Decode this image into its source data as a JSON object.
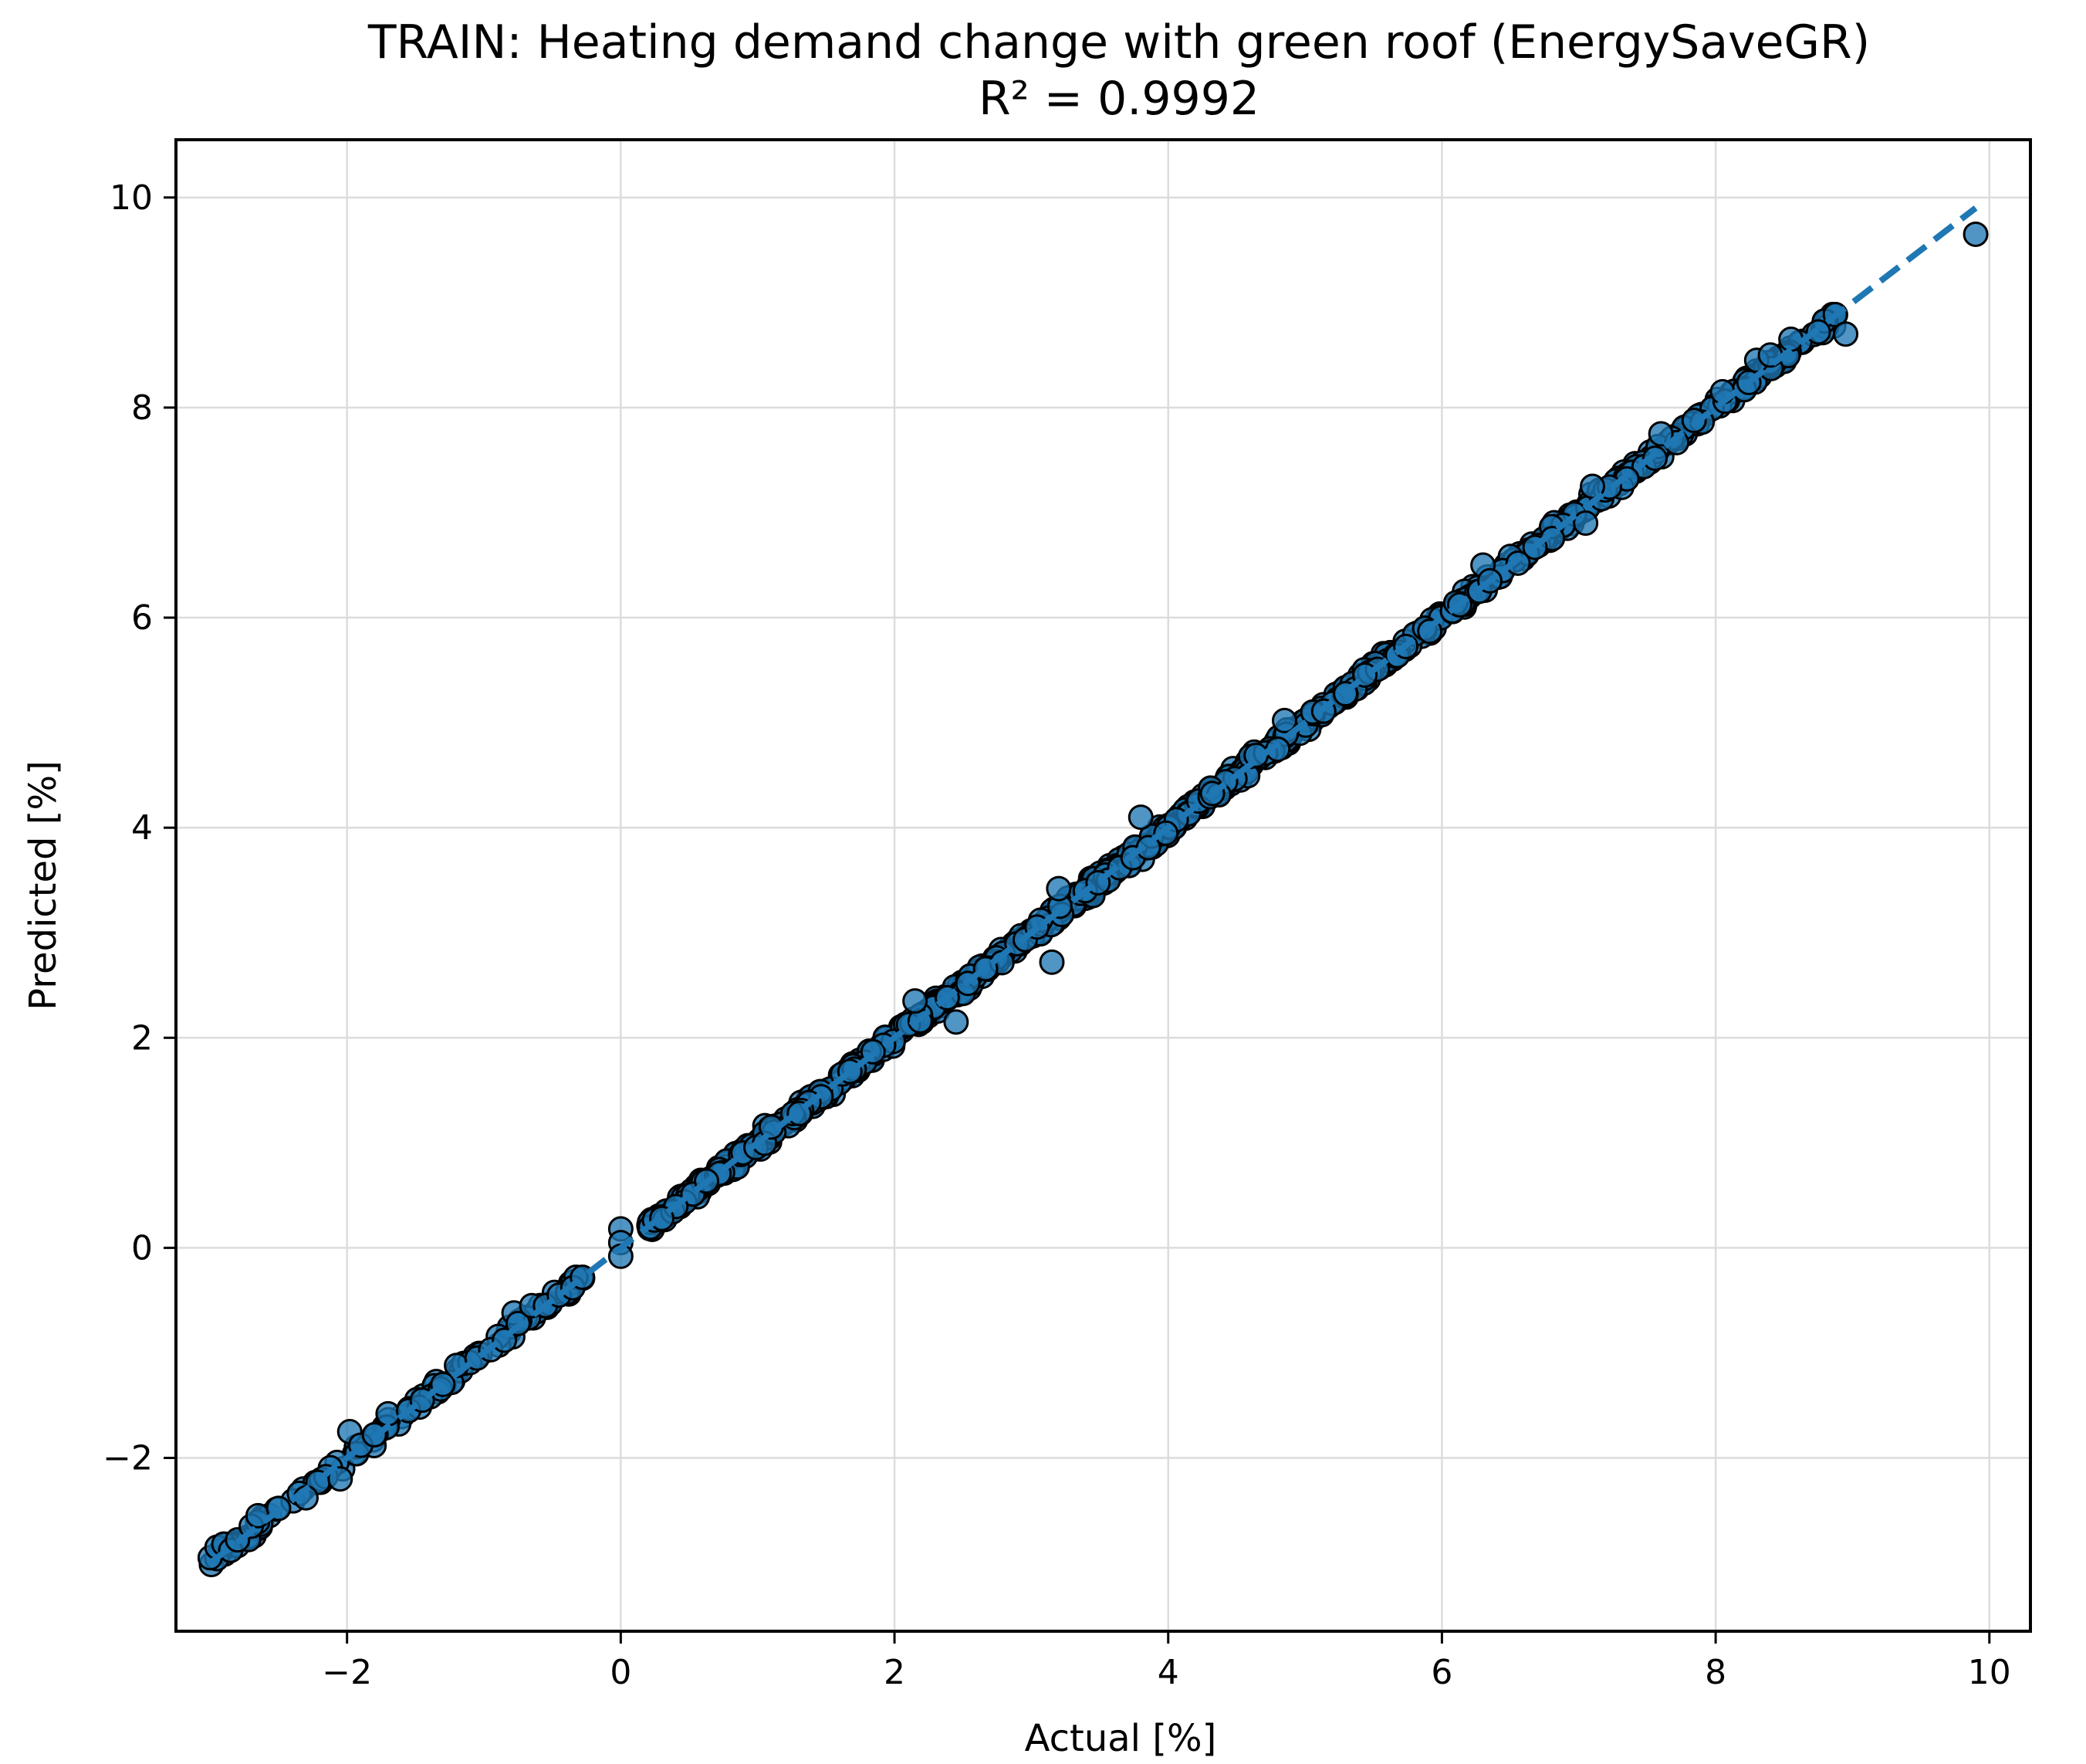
{
  "chart_data": {
    "type": "scatter",
    "title": "TRAIN: Heating demand change with green roof (EnergySaveGR)",
    "subtitle": "R² = 0.9992",
    "xlabel": "Actual [%]",
    "ylabel": "Predicted [%]",
    "xlim": [
      -3.25,
      10.3
    ],
    "ylim": [
      -3.65,
      10.55
    ],
    "xticks": [
      -2,
      0,
      2,
      4,
      6,
      8,
      10
    ],
    "yticks": [
      -2,
      0,
      2,
      4,
      6,
      8,
      10
    ],
    "xtick_labels": [
      "−2",
      "0",
      "2",
      "4",
      "6",
      "8",
      "10"
    ],
    "ytick_labels": [
      "−2",
      "0",
      "2",
      "4",
      "6",
      "8",
      "10"
    ],
    "grid": true,
    "marker_color": "#1f77b4",
    "reference_line": {
      "style": "dashed",
      "color": "#1f77b4",
      "from": [
        -3.0,
        -3.0
      ],
      "to": [
        9.9,
        9.9
      ]
    },
    "points_generated": {
      "count": 900,
      "x_range": [
        -3.0,
        8.9
      ],
      "noise": 0.05
    },
    "points": [
      [
        -3.0,
        -2.95
      ],
      [
        -2.95,
        -2.85
      ],
      [
        -2.9,
        -2.82
      ],
      [
        -2.85,
        -2.88
      ],
      [
        -2.8,
        -2.78
      ],
      [
        -2.7,
        -2.65
      ],
      [
        -2.65,
        -2.55
      ],
      [
        -2.5,
        -2.48
      ],
      [
        -2.3,
        -2.38
      ],
      [
        -2.05,
        -2.2
      ],
      [
        -1.98,
        -1.75
      ],
      [
        -1.9,
        -1.88
      ],
      [
        -1.8,
        -1.78
      ],
      [
        -1.7,
        -1.58
      ],
      [
        -1.55,
        -1.55
      ],
      [
        -1.45,
        -1.45
      ],
      [
        -1.3,
        -1.3
      ],
      [
        -1.2,
        -1.12
      ],
      [
        -1.05,
        -1.05
      ],
      [
        -0.95,
        -0.97
      ],
      [
        -0.85,
        -0.88
      ],
      [
        -0.78,
        -0.62
      ],
      [
        -0.75,
        -0.72
      ],
      [
        -0.65,
        -0.55
      ],
      [
        -0.55,
        -0.55
      ],
      [
        -0.45,
        -0.45
      ],
      [
        -0.35,
        -0.38
      ],
      [
        -0.28,
        -0.28
      ],
      [
        0.0,
        0.18
      ],
      [
        0.0,
        0.05
      ],
      [
        0.0,
        -0.08
      ],
      [
        0.3,
        0.28
      ],
      [
        1.1,
        1.15
      ],
      [
        2.15,
        2.35
      ],
      [
        2.45,
        2.15
      ],
      [
        3.15,
        2.72
      ],
      [
        3.2,
        3.42
      ],
      [
        3.8,
        4.1
      ],
      [
        4.85,
        5.02
      ],
      [
        6.3,
        6.5
      ],
      [
        6.35,
        6.35
      ],
      [
        7.05,
        6.9
      ],
      [
        7.1,
        7.25
      ],
      [
        7.6,
        7.75
      ],
      [
        8.05,
        8.15
      ],
      [
        8.3,
        8.45
      ],
      [
        8.4,
        8.5
      ],
      [
        8.55,
        8.65
      ],
      [
        8.75,
        8.72
      ],
      [
        8.95,
        8.7
      ],
      [
        9.9,
        9.65
      ]
    ]
  }
}
